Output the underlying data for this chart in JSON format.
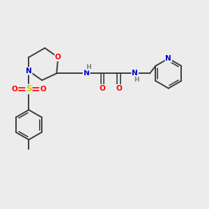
{
  "background_color": "#ececec",
  "bond_color": "#3a3a3a",
  "atom_colors": {
    "O": "#ff0000",
    "N": "#0000cc",
    "S": "#cccc00",
    "H": "#808080",
    "C": "#3a3a3a"
  },
  "figsize": [
    3.0,
    3.0
  ],
  "dpi": 100
}
